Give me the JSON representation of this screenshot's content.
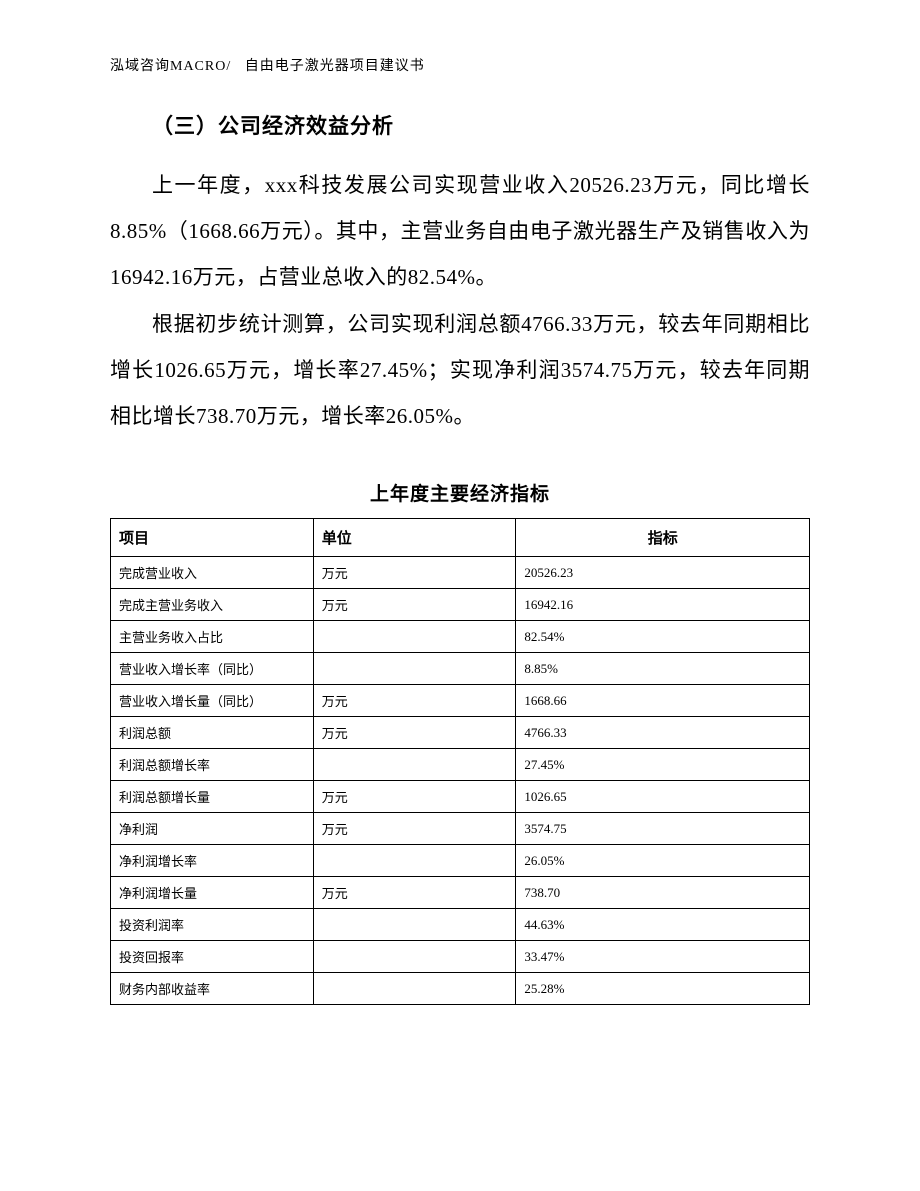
{
  "header": {
    "left": "泓域咨询MACRO/",
    "right": "自由电子激光器项目建议书"
  },
  "section_heading": "（三）公司经济效益分析",
  "paragraphs": [
    "上一年度，xxx科技发展公司实现营业收入20526.23万元，同比增长8.85%（1668.66万元）。其中，主营业务自由电子激光器生产及销售收入为16942.16万元，占营业总收入的82.54%。",
    "根据初步统计测算，公司实现利润总额4766.33万元，较去年同期相比增长1026.65万元，增长率27.45%；实现净利润3574.75万元，较去年同期相比增长738.70万元，增长率26.05%。"
  ],
  "table": {
    "title": "上年度主要经济指标",
    "columns": [
      "项目",
      "单位",
      "指标"
    ],
    "rows": [
      [
        "完成营业收入",
        "万元",
        "20526.23"
      ],
      [
        "完成主营业务收入",
        "万元",
        "16942.16"
      ],
      [
        "主营业务收入占比",
        "",
        "82.54%"
      ],
      [
        "营业收入增长率（同比）",
        "",
        "8.85%"
      ],
      [
        "营业收入增长量（同比）",
        "万元",
        "1668.66"
      ],
      [
        "利润总额",
        "万元",
        "4766.33"
      ],
      [
        "利润总额增长率",
        "",
        "27.45%"
      ],
      [
        "利润总额增长量",
        "万元",
        "1026.65"
      ],
      [
        "净利润",
        "万元",
        "3574.75"
      ],
      [
        "净利润增长率",
        "",
        "26.05%"
      ],
      [
        "净利润增长量",
        "万元",
        "738.70"
      ],
      [
        "投资利润率",
        "",
        "44.63%"
      ],
      [
        "投资回报率",
        "",
        "33.47%"
      ],
      [
        "财务内部收益率",
        "",
        "25.28%"
      ]
    ]
  }
}
